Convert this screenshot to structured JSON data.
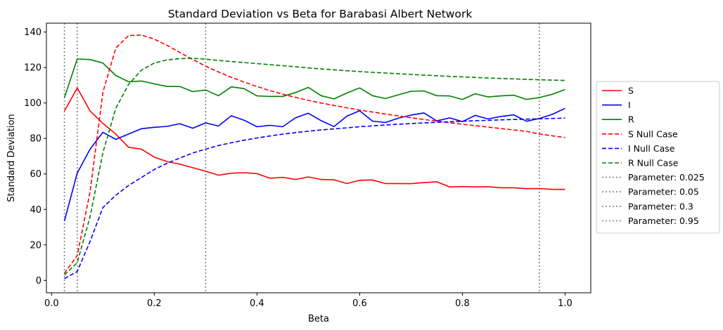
{
  "chart_data": {
    "type": "line",
    "title": "Standard Deviation vs Beta for Barabasi Albert Network",
    "xlabel": "Beta",
    "ylabel": "Standard Deviation",
    "xlim": [
      -0.01,
      1.05
    ],
    "ylim": [
      -7,
      145
    ],
    "xticks": [
      0.0,
      0.2,
      0.4,
      0.6,
      0.8,
      1.0
    ],
    "xtick_labels": [
      "0.0",
      "0.2",
      "0.4",
      "0.6",
      "0.8",
      "1.0"
    ],
    "yticks": [
      0,
      20,
      40,
      60,
      80,
      100,
      120,
      140
    ],
    "ytick_labels": [
      "0",
      "20",
      "40",
      "60",
      "80",
      "100",
      "120",
      "140"
    ],
    "grid": false,
    "legend_position": "outside-right",
    "x": [
      0.025,
      0.05,
      0.075,
      0.1,
      0.125,
      0.15,
      0.175,
      0.2,
      0.225,
      0.25,
      0.275,
      0.3,
      0.325,
      0.35,
      0.375,
      0.4,
      0.425,
      0.45,
      0.475,
      0.5,
      0.525,
      0.55,
      0.575,
      0.6,
      0.625,
      0.65,
      0.675,
      0.7,
      0.725,
      0.75,
      0.775,
      0.8,
      0.825,
      0.85,
      0.875,
      0.9,
      0.925,
      0.95,
      0.975,
      1.0
    ],
    "series": [
      {
        "name": "S",
        "color": "#ff0000",
        "dash": "solid",
        "values": [
          95.5,
          108.5,
          95.5,
          88.5,
          82.5,
          75,
          74,
          69.5,
          67,
          65.5,
          63.5,
          61.5,
          59.3,
          60.4,
          60.7,
          60.2,
          57.6,
          58.1,
          56.9,
          58.3,
          56.9,
          56.7,
          54.6,
          56.4,
          56.6,
          54.6,
          54.6,
          54.5,
          55.1,
          55.6,
          52.7,
          52.9,
          52.7,
          52.8,
          52.2,
          52.2,
          51.7,
          51.8,
          51.3,
          51.3
        ]
      },
      {
        "name": "I",
        "color": "#0000ff",
        "dash": "solid",
        "values": [
          33.5,
          60.5,
          74,
          83.5,
          79.5,
          82.5,
          85.5,
          86.3,
          86.8,
          88.3,
          85.8,
          88.8,
          87,
          92.8,
          90.3,
          86.6,
          87.4,
          86.6,
          91.6,
          94.2,
          90,
          86.7,
          92.6,
          95.6,
          89.8,
          89,
          91.4,
          93.2,
          94.4,
          89.9,
          91.6,
          89.5,
          93,
          91,
          92.4,
          93.3,
          89.7,
          91.3,
          93.6,
          97
        ]
      },
      {
        "name": "R",
        "color": "#008000",
        "dash": "solid",
        "values": [
          103,
          124.8,
          124.5,
          122.5,
          115.5,
          112,
          112.4,
          110.8,
          109.3,
          109.3,
          106.4,
          107.3,
          104.1,
          109.1,
          108.1,
          104,
          103.7,
          103.7,
          105.9,
          108.8,
          104.1,
          102.3,
          105.6,
          108.5,
          104.1,
          102.5,
          104.6,
          106.6,
          106.8,
          104.1,
          104,
          102,
          105.2,
          103.4,
          104,
          104.4,
          102,
          103.1,
          104.9,
          107.6
        ]
      },
      {
        "name": "S Null Case",
        "color": "#ff0000",
        "dash": "dashed",
        "values": [
          4,
          14,
          50,
          106,
          131,
          138,
          138.3,
          136,
          132.5,
          128.5,
          124.5,
          120.8,
          117.5,
          114.5,
          111.8,
          109.3,
          107,
          105,
          103.2,
          101.5,
          100,
          98.6,
          97.3,
          96,
          94.9,
          93.8,
          92.7,
          91.7,
          90.7,
          89.8,
          88.9,
          88,
          87.2,
          86.4,
          85.6,
          84.8,
          84,
          82.5,
          81.5,
          80.5
        ]
      },
      {
        "name": "I Null Case",
        "color": "#0000ff",
        "dash": "dashed",
        "values": [
          1,
          5,
          22,
          41,
          48,
          53.5,
          58,
          62.5,
          66,
          69,
          71.8,
          74,
          76,
          77.6,
          79,
          80.3,
          81.4,
          82.4,
          83.3,
          84.1,
          84.8,
          85.4,
          86,
          86.6,
          87.1,
          87.6,
          88,
          88.4,
          88.8,
          89.1,
          89.4,
          89.7,
          90,
          90.2,
          90.5,
          90.7,
          90.9,
          91.1,
          91.3,
          91.5
        ]
      },
      {
        "name": "R Null Case",
        "color": "#008000",
        "dash": "dashed",
        "values": [
          3,
          10,
          36,
          72,
          97,
          110.5,
          118.5,
          122.5,
          124.3,
          125,
          125.2,
          124.7,
          124,
          123.4,
          122.8,
          122.2,
          121.6,
          121,
          120.4,
          119.8,
          119.2,
          118.7,
          118.2,
          117.7,
          117.3,
          116.9,
          116.5,
          116.1,
          115.7,
          115.4,
          115,
          114.7,
          114.4,
          114.1,
          113.8,
          113.6,
          113.3,
          113.1,
          112.9,
          112.7
        ]
      }
    ],
    "vlines": [
      {
        "name": "Parameter: 0.025",
        "x": 0.025,
        "color": "#808080",
        "dash": "dotted"
      },
      {
        "name": "Parameter: 0.05",
        "x": 0.05,
        "color": "#808080",
        "dash": "dotted"
      },
      {
        "name": "Parameter: 0.3",
        "x": 0.3,
        "color": "#808080",
        "dash": "dotted"
      },
      {
        "name": "Parameter: 0.95",
        "x": 0.95,
        "color": "#808080",
        "dash": "dotted"
      }
    ]
  }
}
